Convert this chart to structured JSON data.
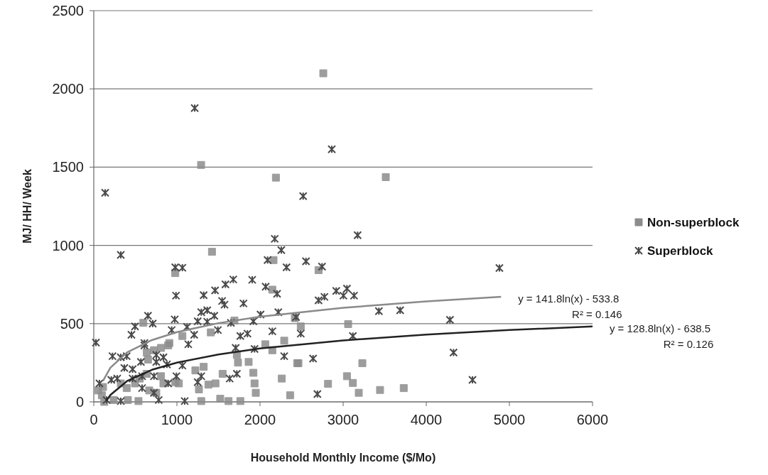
{
  "chart_data": {
    "type": "scatter",
    "xlabel": "Household Monthly Income ($/Mo)",
    "ylabel": "MJ/ HH/ Week",
    "xlim": [
      0,
      6000
    ],
    "xticks": [
      0,
      1000,
      2000,
      3000,
      4000,
      5000,
      6000
    ],
    "ylim": [
      0,
      2500
    ],
    "yticks": [
      0,
      500,
      1000,
      1500,
      2000,
      2500
    ],
    "grid": "y",
    "legend": "right",
    "series": [
      {
        "name": "Non-superblock",
        "color": "#8c8c8c",
        "marker": "square",
        "x": [
          980,
          2162,
          1422,
          2148,
          596,
          1066,
          1408,
          1692,
          2419,
          909,
          2063,
          2148,
          2291,
          1721,
          1735,
          1863,
          1920,
          2262,
          1934,
          1949,
          2362,
          2447,
          1550,
          1379,
          1464,
          1265,
          1293,
          1521,
          1621,
          1763,
          1222,
          1322,
          1023,
          724,
          809,
          895,
          638,
          652,
          553,
          638,
          809,
          111,
          325,
          396,
          496,
          667,
          752,
          838,
          980,
          97,
          239,
          410,
          538,
          54,
          126,
          2704,
          2490,
          3060,
          2462,
          3231,
          3046,
          3117,
          2818,
          3188,
          3444,
          3729,
          1291,
          2191,
          2761,
          3513
        ],
        "values": [
          823,
          906,
          959,
          717,
          505,
          421,
          444,
          520,
          535,
          376,
          368,
          330,
          391,
          300,
          251,
          255,
          186,
          149,
          118,
          58,
          42,
          247,
          179,
          110,
          118,
          80,
          5,
          20,
          5,
          5,
          201,
          224,
          118,
          330,
          345,
          361,
          315,
          270,
          149,
          179,
          164,
          95,
          118,
          88,
          118,
          73,
          58,
          118,
          126,
          42,
          12,
          12,
          5,
          73,
          0,
          842,
          482,
          497,
          247,
          247,
          164,
          121,
          115,
          58,
          76,
          88,
          1514,
          1433,
          2100,
          1436
        ]
      },
      {
        "name": "Superblock",
        "color": "#4a4a4a",
        "marker": "cross",
        "x": [
          2177,
          2256,
          2091,
          2319,
          325,
          980,
          1066,
          1678,
          1584,
          1459,
          1322,
          989,
          1906,
          2068,
          2205,
          1544,
          1573,
          1801,
          1293,
          1365,
          1450,
          652,
          974,
          709,
          496,
          453,
          1250,
          1365,
          1122,
          937,
          1208,
          1493,
          1650,
          1920,
          2006,
          2220,
          2148,
          1763,
          1849,
          1137,
          609,
          26,
          1707,
          2291,
          1934,
          1635,
          1721,
          1094,
          1066,
          1293,
          1250,
          994,
          895,
          225,
          325,
          396,
          368,
          467,
          567,
          581,
          609,
          752,
          838,
          752,
          880,
          467,
          724,
          211,
          282,
          68,
          581,
          724,
          781,
          154,
          325,
          3174,
          2553,
          2746,
          2917,
          3046,
          3003,
          3131,
          2704,
          2775,
          3430,
          3686,
          2433,
          2490,
          3117,
          4285,
          4328,
          4556,
          2638,
          2690,
          4880,
          137,
          1214,
          2519,
          2863
        ],
        "values": [
          1042,
          970,
          906,
          860,
          939,
          860,
          857,
          782,
          751,
          712,
          682,
          679,
          780,
          736,
          691,
          645,
          621,
          629,
          573,
          585,
          550,
          550,
          527,
          500,
          482,
          429,
          515,
          512,
          479,
          459,
          429,
          459,
          505,
          515,
          558,
          573,
          451,
          421,
          436,
          368,
          376,
          379,
          345,
          292,
          338,
          149,
          179,
          5,
          232,
          164,
          126,
          164,
          118,
          292,
          285,
          292,
          217,
          209,
          255,
          164,
          361,
          300,
          285,
          255,
          239,
          149,
          164,
          141,
          149,
          118,
          88,
          58,
          12,
          12,
          5,
          1065,
          898,
          864,
          709,
          724,
          679,
          679,
          649,
          671,
          580,
          585,
          542,
          436,
          421,
          524,
          315,
          141,
          277,
          50,
          855,
          1336,
          1877,
          1315,
          1614
        ]
      },
      {
        "type": "line",
        "color": "#8a8a8a",
        "x": [
          110,
          200,
          400,
          700,
          1000,
          1500,
          2000,
          3000,
          4000,
          4900
        ],
        "values": [
          133,
          218,
          316,
          395,
          446,
          503,
          544,
          601,
          642,
          671
        ]
      },
      {
        "type": "line",
        "color": "#222222",
        "x": [
          150,
          200,
          400,
          700,
          1000,
          1500,
          2000,
          3000,
          4000,
          5000,
          6000
        ],
        "values": [
          7,
          44,
          133,
          205,
          251,
          303,
          341,
          393,
          430,
          459,
          482
        ]
      }
    ],
    "annotations": [
      {
        "text": "y = 141.8ln(x) - 533.8\nR² = 0.146",
        "x": 4900,
        "y": 671
      },
      {
        "text": "y = 128.8ln(x) - 638.5\nR² = 0.126",
        "x": 6000,
        "y": 482
      }
    ]
  }
}
